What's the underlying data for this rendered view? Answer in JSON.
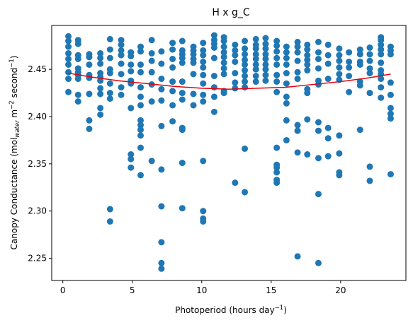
{
  "chart_data": {
    "type": "scatter",
    "title": "H x g_C",
    "xlabel": {
      "main": "Photoperiod (hours day",
      "sup": "−1",
      "tail": ")"
    },
    "ylabel": {
      "p1": "Canopy Conductance (mol",
      "sub": "water",
      "p2": " m",
      "sup1": "−2",
      "p3": " second",
      "sup2": "−1",
      "p4": ")"
    },
    "xlim": [
      -0.8,
      24.7
    ],
    "ylim": [
      2.2265,
      2.4965
    ],
    "xticks": [
      0,
      5,
      10,
      15,
      20
    ],
    "yticks": [
      2.25,
      2.3,
      2.35,
      2.4,
      2.45
    ],
    "ytick_labels": [
      "2.25",
      "2.30",
      "2.35",
      "2.40",
      "2.45"
    ],
    "point_color": "#1f77b4",
    "fit_color": "#e8000b",
    "points": [
      [
        0.4,
        2.485
      ],
      [
        0.4,
        2.48
      ],
      [
        0.4,
        2.474
      ],
      [
        0.4,
        2.467
      ],
      [
        0.4,
        2.461
      ],
      [
        0.4,
        2.455
      ],
      [
        0.4,
        2.447
      ],
      [
        0.4,
        2.44
      ],
      [
        0.4,
        2.426
      ],
      [
        1.1,
        2.481
      ],
      [
        1.1,
        2.477
      ],
      [
        1.1,
        2.465
      ],
      [
        1.1,
        2.461
      ],
      [
        1.1,
        2.451
      ],
      [
        1.1,
        2.447
      ],
      [
        1.1,
        2.444
      ],
      [
        1.1,
        2.44
      ],
      [
        1.1,
        2.423
      ],
      [
        1.1,
        2.416
      ],
      [
        1.9,
        2.466
      ],
      [
        1.9,
        2.463
      ],
      [
        1.9,
        2.455
      ],
      [
        1.9,
        2.444
      ],
      [
        1.9,
        2.441
      ],
      [
        1.9,
        2.424
      ],
      [
        1.9,
        2.396
      ],
      [
        1.9,
        2.387
      ],
      [
        2.7,
        2.467
      ],
      [
        2.7,
        2.462
      ],
      [
        2.7,
        2.456
      ],
      [
        2.7,
        2.446
      ],
      [
        2.7,
        2.442
      ],
      [
        2.7,
        2.438
      ],
      [
        2.7,
        2.43
      ],
      [
        2.7,
        2.424
      ],
      [
        2.7,
        2.409
      ],
      [
        2.7,
        2.402
      ],
      [
        3.4,
        2.482
      ],
      [
        3.4,
        2.471
      ],
      [
        3.4,
        2.462
      ],
      [
        3.4,
        2.45
      ],
      [
        3.4,
        2.446
      ],
      [
        3.4,
        2.435
      ],
      [
        3.4,
        2.425
      ],
      [
        3.4,
        2.419
      ],
      [
        3.4,
        2.302
      ],
      [
        3.4,
        2.289
      ],
      [
        4.2,
        2.481
      ],
      [
        4.2,
        2.476
      ],
      [
        4.2,
        2.47
      ],
      [
        4.2,
        2.465
      ],
      [
        4.2,
        2.456
      ],
      [
        4.2,
        2.445
      ],
      [
        4.2,
        2.431
      ],
      [
        4.2,
        2.423
      ],
      [
        4.9,
        2.468
      ],
      [
        4.9,
        2.464
      ],
      [
        4.9,
        2.455
      ],
      [
        4.9,
        2.448
      ],
      [
        4.9,
        2.438
      ],
      [
        4.9,
        2.435
      ],
      [
        4.9,
        2.409
      ],
      [
        4.9,
        2.36
      ],
      [
        4.9,
        2.355
      ],
      [
        4.9,
        2.346
      ],
      [
        5.6,
        2.474
      ],
      [
        5.6,
        2.469
      ],
      [
        5.6,
        2.455
      ],
      [
        5.6,
        2.447
      ],
      [
        5.6,
        2.431
      ],
      [
        5.6,
        2.421
      ],
      [
        5.6,
        2.412
      ],
      [
        5.6,
        2.396
      ],
      [
        5.6,
        2.391
      ],
      [
        5.6,
        2.386
      ],
      [
        5.6,
        2.38
      ],
      [
        5.6,
        2.367
      ],
      [
        5.6,
        2.338
      ],
      [
        6.4,
        2.481
      ],
      [
        6.4,
        2.467
      ],
      [
        6.4,
        2.459
      ],
      [
        6.4,
        2.447
      ],
      [
        6.4,
        2.434
      ],
      [
        6.4,
        2.416
      ],
      [
        6.4,
        2.353
      ],
      [
        7.1,
        2.469
      ],
      [
        7.1,
        2.456
      ],
      [
        7.1,
        2.44
      ],
      [
        7.1,
        2.429
      ],
      [
        7.1,
        2.417
      ],
      [
        7.1,
        2.39
      ],
      [
        7.1,
        2.344
      ],
      [
        7.1,
        2.305
      ],
      [
        7.1,
        2.267
      ],
      [
        7.1,
        2.245
      ],
      [
        7.1,
        2.239
      ],
      [
        7.9,
        2.478
      ],
      [
        7.9,
        2.471
      ],
      [
        7.9,
        2.461
      ],
      [
        7.9,
        2.452
      ],
      [
        7.9,
        2.437
      ],
      [
        7.9,
        2.427
      ],
      [
        7.9,
        2.412
      ],
      [
        7.9,
        2.395
      ],
      [
        8.6,
        2.48
      ],
      [
        8.6,
        2.47
      ],
      [
        8.6,
        2.466
      ],
      [
        8.6,
        2.462
      ],
      [
        8.6,
        2.457
      ],
      [
        8.6,
        2.437
      ],
      [
        8.6,
        2.425
      ],
      [
        8.6,
        2.418
      ],
      [
        8.6,
        2.388
      ],
      [
        8.6,
        2.386
      ],
      [
        8.6,
        2.351
      ],
      [
        8.6,
        2.303
      ],
      [
        9.4,
        2.474
      ],
      [
        9.4,
        2.47
      ],
      [
        9.4,
        2.466
      ],
      [
        9.4,
        2.461
      ],
      [
        9.4,
        2.457
      ],
      [
        9.4,
        2.445
      ],
      [
        9.4,
        2.424
      ],
      [
        9.4,
        2.412
      ],
      [
        10.1,
        2.478
      ],
      [
        10.1,
        2.47
      ],
      [
        10.1,
        2.465
      ],
      [
        10.1,
        2.458
      ],
      [
        10.1,
        2.452
      ],
      [
        10.1,
        2.444
      ],
      [
        10.1,
        2.435
      ],
      [
        10.1,
        2.423
      ],
      [
        10.1,
        2.416
      ],
      [
        10.1,
        2.353
      ],
      [
        10.1,
        2.3
      ],
      [
        10.1,
        2.292
      ],
      [
        10.1,
        2.289
      ],
      [
        10.9,
        2.486
      ],
      [
        10.9,
        2.481
      ],
      [
        10.9,
        2.477
      ],
      [
        10.9,
        2.473
      ],
      [
        10.9,
        2.462
      ],
      [
        10.9,
        2.443
      ],
      [
        10.9,
        2.431
      ],
      [
        10.9,
        2.421
      ],
      [
        10.9,
        2.405
      ],
      [
        11.6,
        2.484
      ],
      [
        11.6,
        2.48
      ],
      [
        11.6,
        2.474
      ],
      [
        11.6,
        2.468
      ],
      [
        11.6,
        2.463
      ],
      [
        11.6,
        2.457
      ],
      [
        11.6,
        2.451
      ],
      [
        11.6,
        2.445
      ],
      [
        11.6,
        2.427
      ],
      [
        11.6,
        2.425
      ],
      [
        12.4,
        2.476
      ],
      [
        12.4,
        2.47
      ],
      [
        12.4,
        2.465
      ],
      [
        12.4,
        2.458
      ],
      [
        12.4,
        2.446
      ],
      [
        12.4,
        2.436
      ],
      [
        12.4,
        2.43
      ],
      [
        12.4,
        2.33
      ],
      [
        13.1,
        2.48
      ],
      [
        13.1,
        2.472
      ],
      [
        13.1,
        2.466
      ],
      [
        13.1,
        2.46
      ],
      [
        13.1,
        2.455
      ],
      [
        13.1,
        2.449
      ],
      [
        13.1,
        2.443
      ],
      [
        13.1,
        2.437
      ],
      [
        13.1,
        2.431
      ],
      [
        13.1,
        2.366
      ],
      [
        13.1,
        2.32
      ],
      [
        13.9,
        2.482
      ],
      [
        13.9,
        2.476
      ],
      [
        13.9,
        2.472
      ],
      [
        13.9,
        2.466
      ],
      [
        13.9,
        2.461
      ],
      [
        13.9,
        2.455
      ],
      [
        13.9,
        2.45
      ],
      [
        13.9,
        2.443
      ],
      [
        13.9,
        2.437
      ],
      [
        14.6,
        2.483
      ],
      [
        14.6,
        2.477
      ],
      [
        14.6,
        2.472
      ],
      [
        14.6,
        2.466
      ],
      [
        14.6,
        2.461
      ],
      [
        14.6,
        2.455
      ],
      [
        14.6,
        2.45
      ],
      [
        14.6,
        2.444
      ],
      [
        14.6,
        2.438
      ],
      [
        15.4,
        2.48
      ],
      [
        15.4,
        2.475
      ],
      [
        15.4,
        2.469
      ],
      [
        15.4,
        2.462
      ],
      [
        15.4,
        2.455
      ],
      [
        15.4,
        2.444
      ],
      [
        15.4,
        2.437
      ],
      [
        15.4,
        2.426
      ],
      [
        15.4,
        2.367
      ],
      [
        15.4,
        2.349
      ],
      [
        15.4,
        2.346
      ],
      [
        15.4,
        2.341
      ],
      [
        15.4,
        2.333
      ],
      [
        15.4,
        2.33
      ],
      [
        16.1,
        2.474
      ],
      [
        16.1,
        2.468
      ],
      [
        16.1,
        2.462
      ],
      [
        16.1,
        2.455
      ],
      [
        16.1,
        2.446
      ],
      [
        16.1,
        2.435
      ],
      [
        16.1,
        2.421
      ],
      [
        16.1,
        2.414
      ],
      [
        16.1,
        2.396
      ],
      [
        16.1,
        2.375
      ],
      [
        16.9,
        2.479
      ],
      [
        16.9,
        2.474
      ],
      [
        16.9,
        2.468
      ],
      [
        16.9,
        2.459
      ],
      [
        16.9,
        2.447
      ],
      [
        16.9,
        2.44
      ],
      [
        16.9,
        2.391
      ],
      [
        16.9,
        2.385
      ],
      [
        16.9,
        2.362
      ],
      [
        16.9,
        2.252
      ],
      [
        17.6,
        2.476
      ],
      [
        17.6,
        2.471
      ],
      [
        17.6,
        2.465
      ],
      [
        17.6,
        2.46
      ],
      [
        17.6,
        2.455
      ],
      [
        17.6,
        2.449
      ],
      [
        17.6,
        2.429
      ],
      [
        17.6,
        2.425
      ],
      [
        17.6,
        2.397
      ],
      [
        17.6,
        2.36
      ],
      [
        18.4,
        2.479
      ],
      [
        18.4,
        2.468
      ],
      [
        18.4,
        2.461
      ],
      [
        18.4,
        2.451
      ],
      [
        18.4,
        2.438
      ],
      [
        18.4,
        2.434
      ],
      [
        18.4,
        2.394
      ],
      [
        18.4,
        2.385
      ],
      [
        18.4,
        2.356
      ],
      [
        18.4,
        2.318
      ],
      [
        18.4,
        2.245
      ],
      [
        19.1,
        2.476
      ],
      [
        19.1,
        2.465
      ],
      [
        19.1,
        2.456
      ],
      [
        19.1,
        2.44
      ],
      [
        19.1,
        2.388
      ],
      [
        19.1,
        2.377
      ],
      [
        19.1,
        2.358
      ],
      [
        19.9,
        2.472
      ],
      [
        19.9,
        2.465
      ],
      [
        19.9,
        2.459
      ],
      [
        19.9,
        2.452
      ],
      [
        19.9,
        2.445
      ],
      [
        19.9,
        2.439
      ],
      [
        19.9,
        2.38
      ],
      [
        19.9,
        2.361
      ],
      [
        19.9,
        2.341
      ],
      [
        19.9,
        2.338
      ],
      [
        20.6,
        2.468
      ],
      [
        20.6,
        2.458
      ],
      [
        20.6,
        2.452
      ],
      [
        20.6,
        2.443
      ],
      [
        20.6,
        2.426
      ],
      [
        21.4,
        2.471
      ],
      [
        21.4,
        2.466
      ],
      [
        21.4,
        2.458
      ],
      [
        21.4,
        2.455
      ],
      [
        21.4,
        2.437
      ],
      [
        21.4,
        2.433
      ],
      [
        21.4,
        2.386
      ],
      [
        22.1,
        2.473
      ],
      [
        22.1,
        2.466
      ],
      [
        22.1,
        2.459
      ],
      [
        22.1,
        2.451
      ],
      [
        22.1,
        2.446
      ],
      [
        22.1,
        2.425
      ],
      [
        22.1,
        2.347
      ],
      [
        22.1,
        2.332
      ],
      [
        22.9,
        2.484
      ],
      [
        22.9,
        2.481
      ],
      [
        22.9,
        2.476
      ],
      [
        22.9,
        2.471
      ],
      [
        22.9,
        2.466
      ],
      [
        22.9,
        2.457
      ],
      [
        22.9,
        2.449
      ],
      [
        22.9,
        2.445
      ],
      [
        22.9,
        2.44
      ],
      [
        22.9,
        2.431
      ],
      [
        22.9,
        2.42
      ],
      [
        23.6,
        2.474
      ],
      [
        23.6,
        2.47
      ],
      [
        23.6,
        2.466
      ],
      [
        23.6,
        2.436
      ],
      [
        23.6,
        2.423
      ],
      [
        23.6,
        2.409
      ],
      [
        23.6,
        2.403
      ],
      [
        23.6,
        2.398
      ],
      [
        23.6,
        2.339
      ]
    ],
    "fit": {
      "x": [
        0.4,
        2,
        4,
        6,
        8,
        10,
        12,
        14,
        16,
        18,
        20,
        22,
        23.6
      ],
      "y": [
        2.446,
        2.442,
        2.438,
        2.435,
        2.432,
        2.43,
        2.429,
        2.43,
        2.431,
        2.434,
        2.437,
        2.441,
        2.445
      ]
    }
  }
}
